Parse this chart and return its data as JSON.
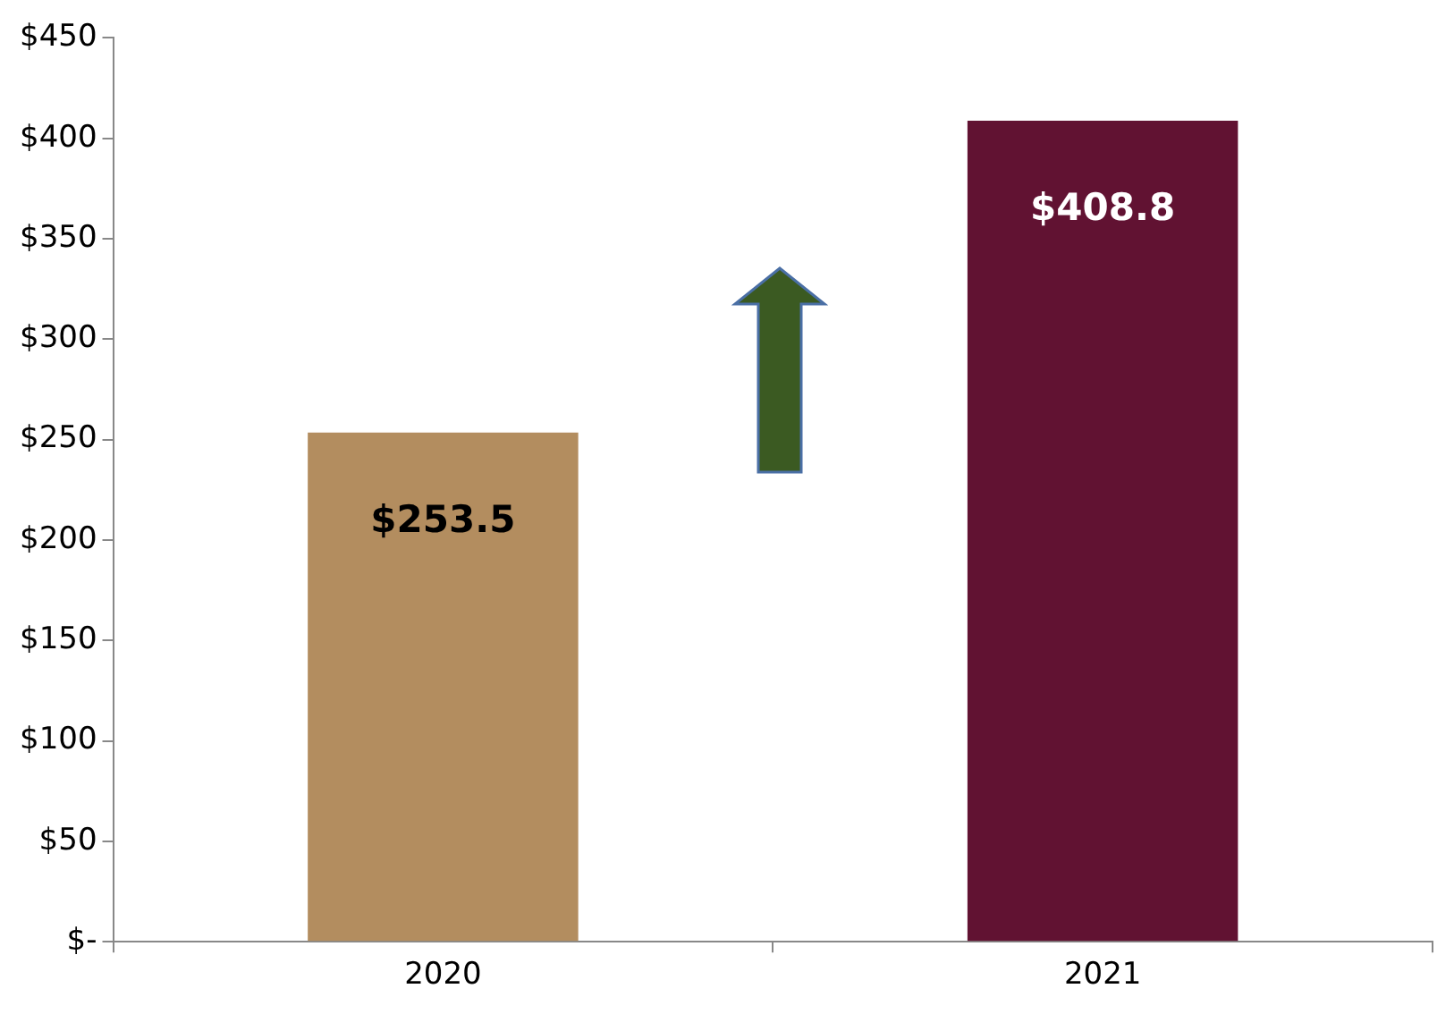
{
  "chart_data": {
    "type": "bar",
    "categories": [
      "2020",
      "2021"
    ],
    "values": [
      253.5,
      408.8
    ],
    "colors": [
      "#b38d5f",
      "#611232"
    ],
    "value_labels": [
      "$253.5",
      "$408.8"
    ],
    "ylim": [
      0,
      450
    ],
    "yticks": [
      {
        "value": 0,
        "label": "$-"
      },
      {
        "value": 50,
        "label": "$50"
      },
      {
        "value": 100,
        "label": "$100"
      },
      {
        "value": 150,
        "label": "$150"
      },
      {
        "value": 200,
        "label": "$200"
      },
      {
        "value": 250,
        "label": "$250"
      },
      {
        "value": 300,
        "label": "$300"
      },
      {
        "value": 350,
        "label": "$350"
      },
      {
        "value": 400,
        "label": "$400"
      },
      {
        "value": 450,
        "label": "$450"
      }
    ],
    "grid": false
  }
}
